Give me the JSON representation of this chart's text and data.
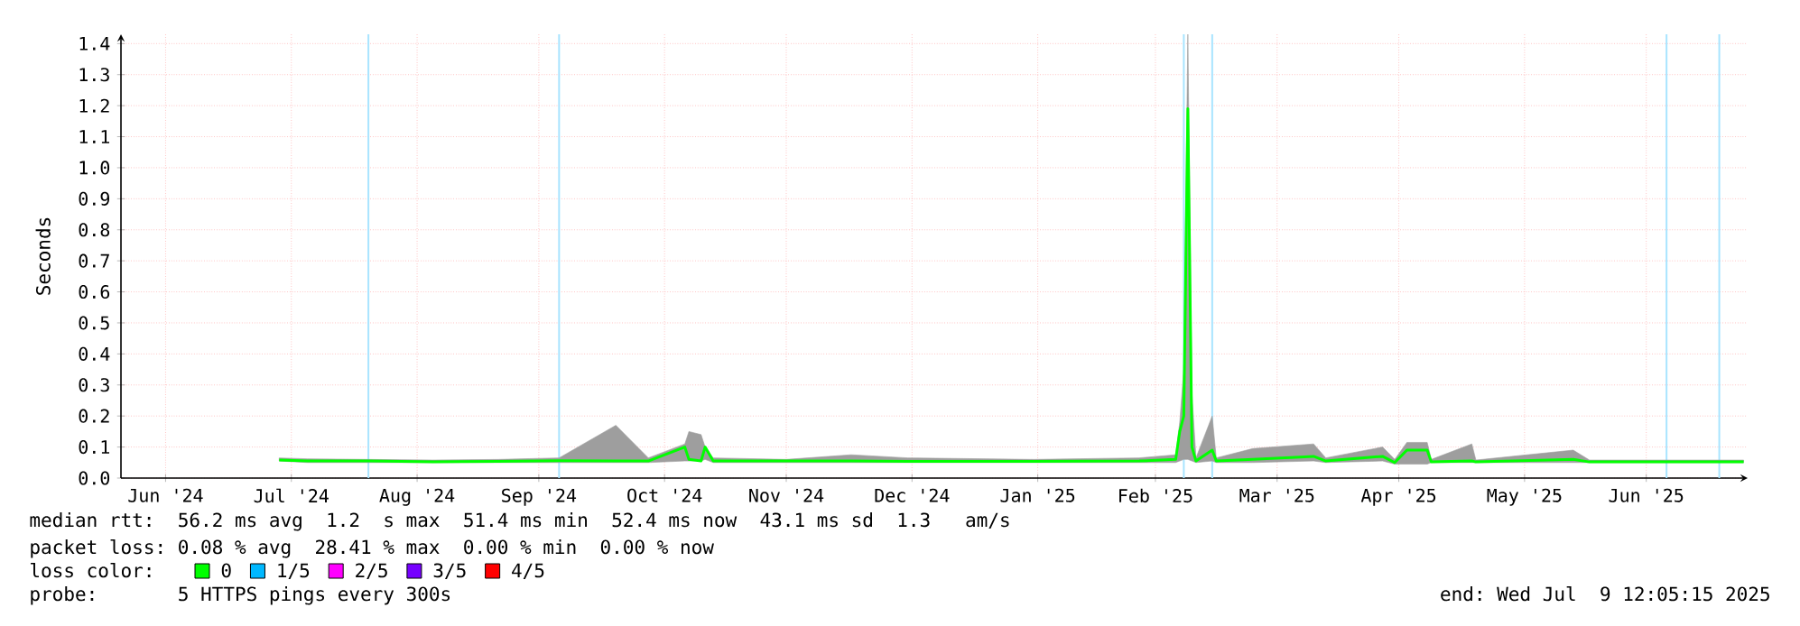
{
  "chart_data": {
    "type": "line",
    "ylabel": "Seconds",
    "legend_title": "loss color:",
    "legend": "bottom",
    "grid": true,
    "xlim": [
      "2024-06-04",
      "2025-07-10"
    ],
    "ylim": [
      0,
      1.43
    ],
    "yticks": [
      {
        "value": 0,
        "label": "0.0"
      },
      0.1,
      0.2,
      0.3,
      0.4,
      0.5,
      0.6,
      0.7,
      0.8,
      0.9,
      {
        "value": 1,
        "label": "1.0"
      },
      1.1,
      1.2,
      1.3,
      1.4
    ],
    "xticks": [
      {
        "value": "2024-06-15",
        "label": "Jun '24"
      },
      {
        "value": "2024-07-16",
        "label": "Jul '24"
      },
      {
        "value": "2024-08-16",
        "label": "Aug '24"
      },
      {
        "value": "2024-09-15",
        "label": "Sep '24"
      },
      {
        "value": "2024-10-16",
        "label": "Oct '24"
      },
      {
        "value": "2024-11-15",
        "label": "Nov '24"
      },
      {
        "value": "2024-12-16",
        "label": "Dec '24"
      },
      {
        "value": "2025-01-16",
        "label": "Jan '25"
      },
      {
        "value": "2025-02-14",
        "label": "Feb '25"
      },
      {
        "value": "2025-03-16",
        "label": "Mar '25"
      },
      {
        "value": "2025-04-15",
        "label": "Apr '25"
      },
      {
        "value": "2025-05-16",
        "label": "May '25"
      },
      {
        "value": "2025-06-15",
        "label": "Jun '25"
      }
    ],
    "ref_lines": [
      {
        "axis": "x",
        "value": "2024-08-04",
        "color": "#a8e4ff"
      },
      {
        "axis": "x",
        "value": "2024-09-20",
        "color": "#a8e4ff"
      },
      {
        "axis": "x",
        "value": "2025-02-21",
        "color": "#a8e4ff"
      },
      {
        "axis": "x",
        "value": "2025-02-28",
        "color": "#a8e4ff"
      },
      {
        "axis": "x",
        "value": "2025-06-20",
        "color": "#a8e4ff"
      },
      {
        "axis": "x",
        "value": "2025-07-03",
        "color": "#a8e4ff"
      }
    ],
    "series": [
      {
        "name": "0",
        "color": "#00ff00",
        "x": [
          "2024-07-13",
          "2024-07-20",
          "2024-08-04",
          "2024-08-20",
          "2024-09-05",
          "2024-09-20",
          "2024-10-04",
          "2024-10-12",
          "2024-10-21",
          "2024-10-22",
          "2024-10-25",
          "2024-10-26",
          "2024-10-28",
          "2024-11-15",
          "2024-12-01",
          "2024-12-15",
          "2025-01-15",
          "2025-02-10",
          "2025-02-19",
          "2025-02-20",
          "2025-02-21",
          "2025-02-22",
          "2025-02-23",
          "2025-02-24",
          "2025-02-28",
          "2025-03-01",
          "2025-03-10",
          "2025-03-25",
          "2025-03-28",
          "2025-04-11",
          "2025-04-14",
          "2025-04-17",
          "2025-04-22",
          "2025-04-23",
          "2025-05-03",
          "2025-05-04",
          "2025-05-28",
          "2025-06-01",
          "2025-06-20",
          "2025-07-09"
        ],
        "values": [
          0.058,
          0.055,
          0.055,
          0.052,
          0.054,
          0.056,
          0.055,
          0.055,
          0.1,
          0.06,
          0.055,
          0.1,
          0.055,
          0.055,
          0.055,
          0.054,
          0.054,
          0.055,
          0.06,
          0.15,
          0.2,
          1.19,
          0.1,
          0.055,
          0.09,
          0.055,
          0.06,
          0.07,
          0.055,
          0.07,
          0.05,
          0.09,
          0.09,
          0.052,
          0.055,
          0.052,
          0.06,
          0.052,
          0.052,
          0.052
        ],
        "lower": [
          0.055,
          0.05,
          0.05,
          0.05,
          0.05,
          0.05,
          0.05,
          0.05,
          0.055,
          0.055,
          0.055,
          0.06,
          0.05,
          0.05,
          0.05,
          0.05,
          0.05,
          0.05,
          0.05,
          0.055,
          0.06,
          0.06,
          0.055,
          0.05,
          0.055,
          0.05,
          0.05,
          0.055,
          0.05,
          0.055,
          0.045,
          0.045,
          0.045,
          0.05,
          0.05,
          0.05,
          0.05,
          0.05,
          0.05,
          0.05
        ],
        "upper": [
          0.065,
          0.062,
          0.06,
          0.058,
          0.06,
          0.065,
          0.17,
          0.065,
          0.11,
          0.15,
          0.14,
          0.1,
          0.065,
          0.06,
          0.075,
          0.065,
          0.06,
          0.065,
          0.075,
          0.18,
          0.35,
          1.43,
          0.27,
          0.065,
          0.2,
          0.065,
          0.095,
          0.11,
          0.065,
          0.1,
          0.06,
          0.115,
          0.115,
          0.06,
          0.11,
          0.058,
          0.09,
          0.058,
          0.058,
          0.058
        ]
      },
      {
        "name": "1/5",
        "color": "#00b8ff"
      },
      {
        "name": "2/5",
        "color": "#ff00ff"
      },
      {
        "name": "3/5",
        "color": "#7600ff"
      },
      {
        "name": "4/5",
        "color": "#ff0000"
      }
    ],
    "annotations": [
      "median rtt:  56.2 ms avg  1.2  s max  51.4 ms min  52.4 ms now  43.1 ms sd  1.3   am/s",
      "packet loss: 0.08 % avg  28.41 % max  0.00 % min  0.00 % now",
      "probe:       5 HTTPS pings every 300s",
      "end: Wed Jul  9 12:05:15 2025"
    ]
  }
}
